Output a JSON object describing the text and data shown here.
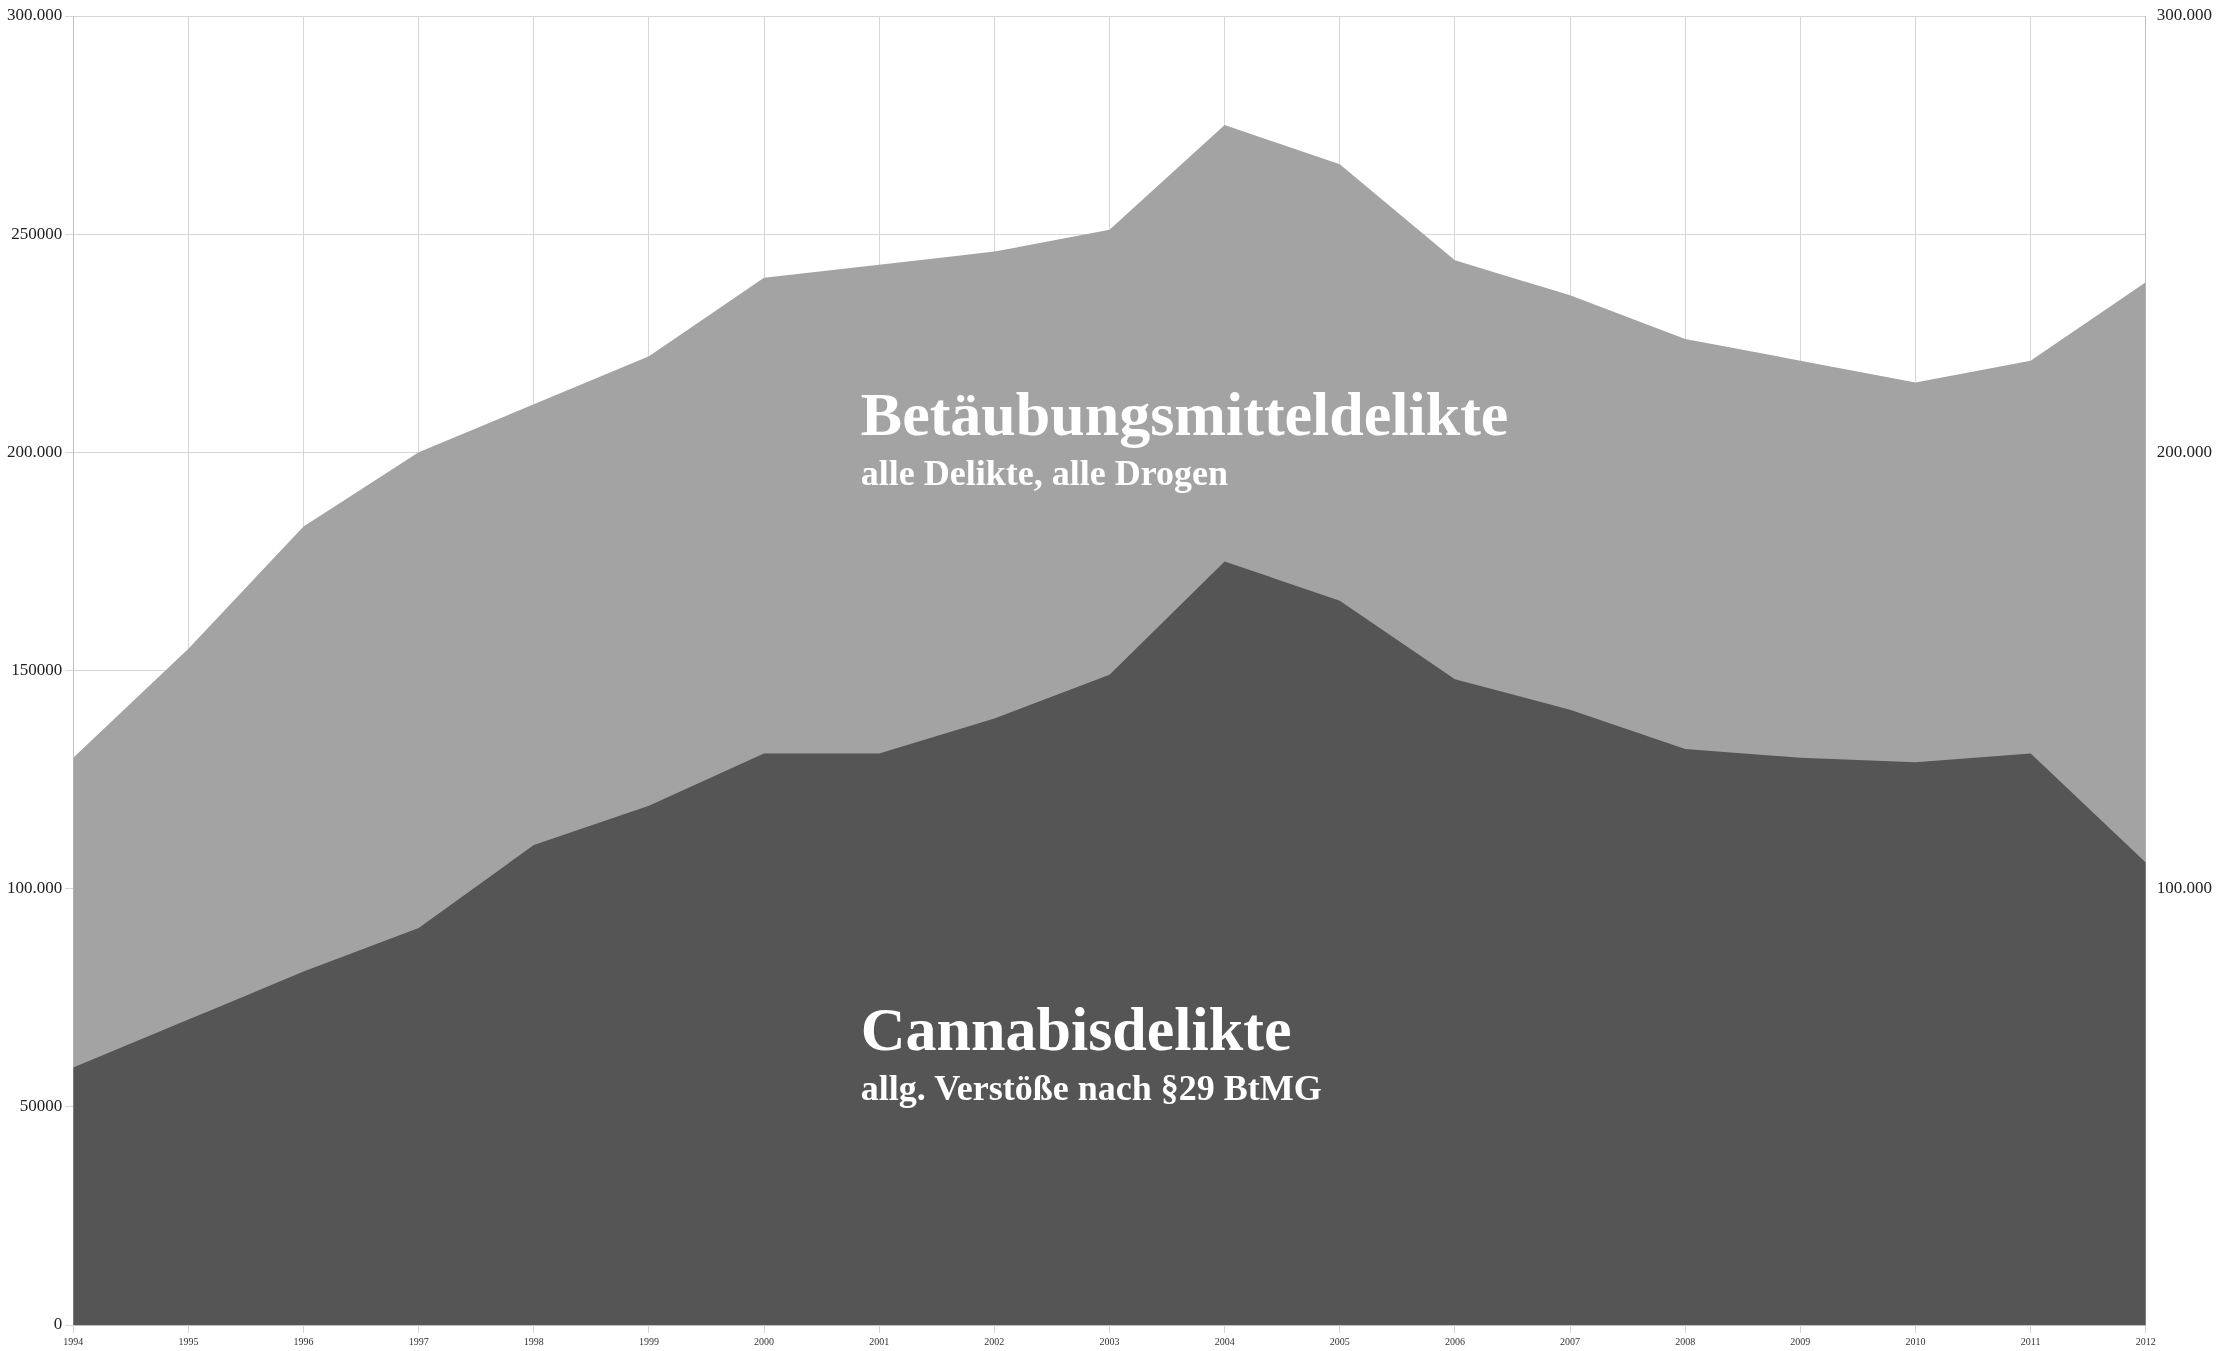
{
  "chart_data": {
    "type": "area",
    "categories": [
      "1994",
      "1995",
      "1996",
      "1997",
      "1998",
      "1999",
      "2000",
      "2001",
      "2002",
      "2003",
      "2004",
      "2005",
      "2006",
      "2007",
      "2008",
      "2009",
      "2010",
      "2011",
      "2012"
    ],
    "series": [
      {
        "name": "Betäubungsmitteldelikte",
        "color": "#a3a3a3",
        "values": [
          130000,
          155000,
          183000,
          200000,
          211000,
          222000,
          240000,
          243000,
          246000,
          251000,
          275000,
          266000,
          244000,
          236000,
          226000,
          221000,
          216000,
          221000,
          239000
        ]
      },
      {
        "name": "Cannabisdelikte",
        "color": "#555555",
        "values": [
          59000,
          70000,
          81000,
          91000,
          110000,
          119000,
          131000,
          131000,
          139000,
          149000,
          175000,
          166000,
          148000,
          141000,
          132000,
          130000,
          129000,
          131000,
          106000
        ]
      }
    ],
    "annotations": [
      "alle Delikte, alle Drogen",
      "allg. Verstöße nach §29 BtMG"
    ],
    "ylim": [
      0,
      300000
    ],
    "yticks": [
      0,
      {
        "value": 50000,
        "label": "50000"
      },
      {
        "value": 100000,
        "label": "100.000"
      },
      {
        "value": 150000,
        "label": "150000"
      },
      {
        "value": 200000,
        "label": "200.000"
      },
      {
        "value": 250000,
        "label": "250000"
      },
      {
        "value": 300000,
        "label": "300.000"
      }
    ],
    "y2lim": [
      0,
      300000
    ],
    "y2ticks": [
      {
        "value": 100000,
        "label": "100.000"
      },
      {
        "value": 200000,
        "label": "200.000"
      },
      {
        "value": 300000,
        "label": "300.000"
      }
    ],
    "grid": true,
    "legend": false
  }
}
